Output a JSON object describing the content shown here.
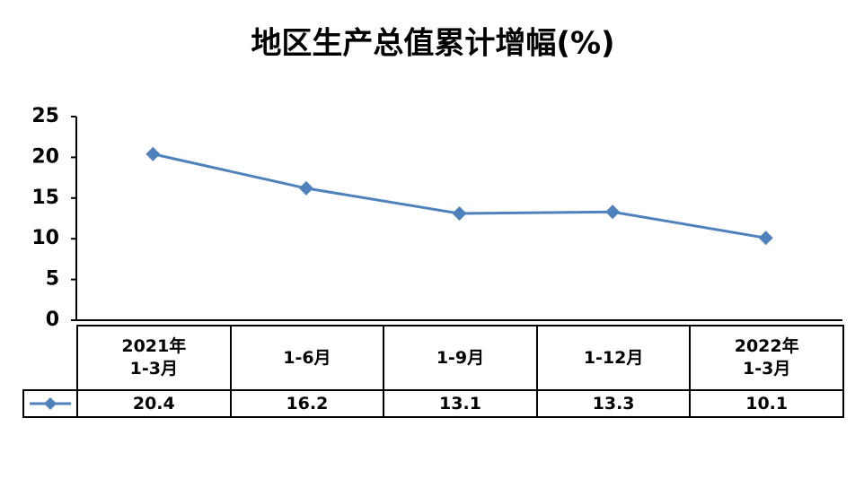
{
  "chart_data": {
    "type": "line",
    "title": "地区生产总值累计增幅(%)",
    "categories": [
      "2021年\n1-3月",
      "1-6月",
      "1-9月",
      "1-12月",
      "2022年\n1-3月"
    ],
    "values": [
      20.4,
      16.2,
      13.1,
      13.3,
      10.1
    ],
    "color": "#4f81bd",
    "ylim": [
      0,
      25
    ],
    "yticks": [
      0,
      5,
      10,
      15,
      20,
      25
    ],
    "grid": false
  }
}
